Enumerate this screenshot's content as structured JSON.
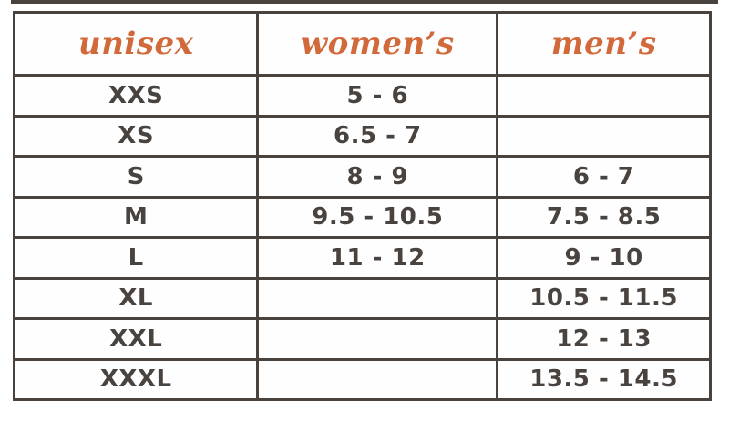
{
  "page": {
    "background": "#ffffff"
  },
  "colors": {
    "accent_orange": "#d2693a",
    "line_dark": "#4a423d",
    "text_dark": "#494340"
  },
  "size_chart": {
    "headers": [
      {
        "label": "unisex"
      },
      {
        "label": "women’s"
      },
      {
        "label": "men’s"
      }
    ],
    "rows": [
      {
        "size": "XXS",
        "womens": "5 - 6",
        "mens": ""
      },
      {
        "size": "XS",
        "womens": "6.5 - 7",
        "mens": ""
      },
      {
        "size": "S",
        "womens": "8 - 9",
        "mens": "6 - 7"
      },
      {
        "size": "M",
        "womens": "9.5 - 10.5",
        "mens": "7.5 - 8.5"
      },
      {
        "size": "L",
        "womens": "11 - 12",
        "mens": "9 - 10"
      },
      {
        "size": "XL",
        "womens": "",
        "mens": "10.5 - 11.5"
      },
      {
        "size": "XXL",
        "womens": "",
        "mens": "12 - 13"
      },
      {
        "size": "XXXL",
        "womens": "",
        "mens": "13.5 - 14.5"
      }
    ]
  },
  "chart_data": {
    "type": "table",
    "title": "",
    "columns": [
      "unisex",
      "women’s",
      "men’s"
    ],
    "rows": [
      [
        "XXS",
        "5 - 6",
        ""
      ],
      [
        "XS",
        "6.5 - 7",
        ""
      ],
      [
        "S",
        "8 - 9",
        "6 - 7"
      ],
      [
        "M",
        "9.5 - 10.5",
        "7.5 - 8.5"
      ],
      [
        "L",
        "11 - 12",
        "9 - 10"
      ],
      [
        "XL",
        "",
        "10.5 - 11.5"
      ],
      [
        "XXL",
        "",
        "12 - 13"
      ],
      [
        "XXXL",
        "",
        "13.5 - 14.5"
      ]
    ]
  }
}
